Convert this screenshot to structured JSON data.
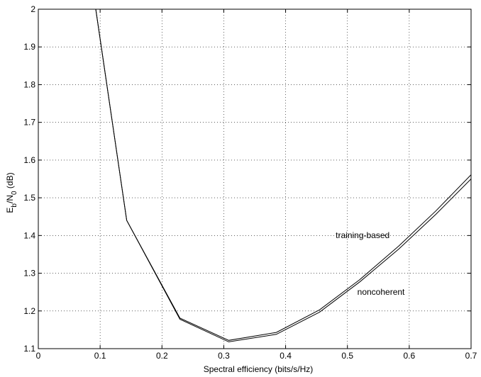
{
  "chart_data": {
    "type": "line",
    "xlabel": "Spectral efficiency (bits/s/Hz)",
    "ylabel": {
      "main1": "E",
      "sub1": "b",
      "slash": "/N",
      "sub2": "0",
      "tail": " (dB)"
    },
    "xlim": [
      0,
      0.7
    ],
    "ylim": [
      1.1,
      2.0
    ],
    "xticks": [
      0,
      0.1,
      0.2,
      0.3,
      0.4,
      0.5,
      0.6,
      0.7
    ],
    "xtick_labels": [
      "0",
      "0.1",
      "0.2",
      "0.3",
      "0.4",
      "0.5",
      "0.6",
      "0.7"
    ],
    "yticks": [
      1.1,
      1.2,
      1.3,
      1.4,
      1.5,
      1.6,
      1.7,
      1.8,
      1.9,
      2.0
    ],
    "ytick_labels": [
      "1.1",
      "1.2",
      "1.3",
      "1.4",
      "1.5",
      "1.6",
      "1.7",
      "1.8",
      "1.9",
      "2"
    ],
    "grid": true,
    "series": [
      {
        "name": "training-based",
        "x": [
          0.093,
          0.143,
          0.229,
          0.308,
          0.385,
          0.455,
          0.52,
          0.583,
          0.643,
          0.7
        ],
        "y": [
          2.0,
          1.44,
          1.181,
          1.122,
          1.143,
          1.203,
          1.283,
          1.372,
          1.465,
          1.561
        ]
      },
      {
        "name": "noncoherent",
        "x": [
          0.093,
          0.143,
          0.229,
          0.308,
          0.385,
          0.455,
          0.52,
          0.583,
          0.643,
          0.7
        ],
        "y": [
          2.0,
          1.44,
          1.178,
          1.118,
          1.138,
          1.197,
          1.277,
          1.364,
          1.456,
          1.55
        ]
      }
    ],
    "annotations": [
      {
        "text": "training-based",
        "x": 0.481,
        "y": 1.393
      },
      {
        "text": "noncoherent",
        "x": 0.516,
        "y": 1.243
      }
    ]
  }
}
